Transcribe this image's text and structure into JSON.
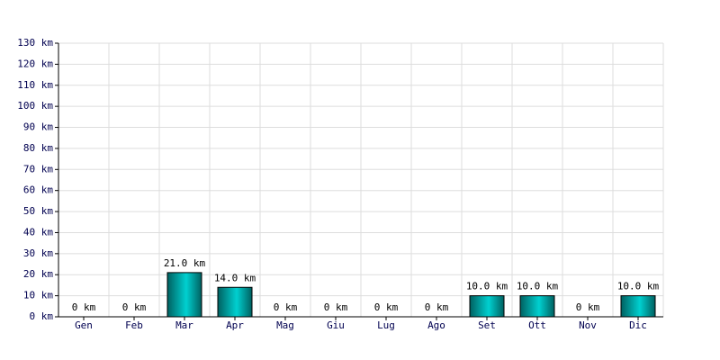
{
  "chart_data": {
    "type": "bar",
    "categories": [
      "Gen",
      "Feb",
      "Mar",
      "Apr",
      "Mag",
      "Giu",
      "Lug",
      "Ago",
      "Set",
      "Ott",
      "Nov",
      "Dic"
    ],
    "values": [
      0,
      0,
      21,
      14,
      0,
      0,
      0,
      0,
      10,
      10,
      0,
      10
    ],
    "value_labels": [
      "0 km",
      "0 km",
      "21.0 km",
      "14.0 km",
      "0 km",
      "0 km",
      "0 km",
      "0 km",
      "10.0 km",
      "10.0 km",
      "0 km",
      "10.0 km"
    ],
    "color": "#00d0d0",
    "ylim": [
      0,
      130
    ],
    "yticks": [
      {
        "value": 0,
        "label": "0 km"
      },
      {
        "value": 10,
        "label": "10 km"
      },
      {
        "value": 20,
        "label": "20 km"
      },
      {
        "value": 30,
        "label": "30 km"
      },
      {
        "value": 40,
        "label": "40 km"
      },
      {
        "value": 50,
        "label": "50 km"
      },
      {
        "value": 60,
        "label": "60 km"
      },
      {
        "value": 70,
        "label": "70 km"
      },
      {
        "value": 80,
        "label": "80 km"
      },
      {
        "value": 90,
        "label": "90 km"
      },
      {
        "value": 100,
        "label": "100 km"
      },
      {
        "value": 110,
        "label": "110 km"
      },
      {
        "value": 120,
        "label": "120 km"
      },
      {
        "value": 130,
        "label": "130 km"
      }
    ],
    "grid": true
  }
}
